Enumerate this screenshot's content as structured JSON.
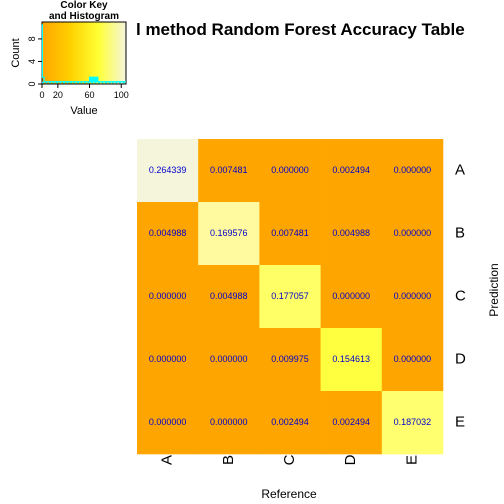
{
  "title": "l method Random Forest Accuracy Table",
  "color_key": {
    "title_line1": "Color Key",
    "title_line2": "and Histogram",
    "xlabel": "Value",
    "ylabel": "Count",
    "x_ticks": [
      "0",
      "20",
      "60",
      "100"
    ],
    "x_tick_values": [
      0,
      20,
      60,
      100
    ],
    "x_range": [
      0,
      106
    ],
    "y_ticks": [
      "0",
      "4",
      "8"
    ],
    "y_tick_values": [
      0,
      4,
      8
    ],
    "y_range": [
      0,
      11
    ],
    "gradient_colors": [
      "#ffa500",
      "#ffd000",
      "#ffff33",
      "#f5f5dc"
    ],
    "histogram_color": "#00ffff"
  },
  "chart_data": {
    "type": "heatmap",
    "title": "l method Random Forest Accuracy Table",
    "xlabel": "Reference",
    "ylabel": "Prediction",
    "columns": [
      "A",
      "B",
      "C",
      "D",
      "E"
    ],
    "rows": [
      "A",
      "B",
      "C",
      "D",
      "E"
    ],
    "values": [
      [
        "0.264339",
        "0.007481",
        "0.000000",
        "0.002494",
        "0.000000"
      ],
      [
        "0.004988",
        "0.169576",
        "0.007481",
        "0.004988",
        "0.000000"
      ],
      [
        "0.000000",
        "0.004988",
        "0.177057",
        "0.000000",
        "0.000000"
      ],
      [
        "0.000000",
        "0.000000",
        "0.009975",
        "0.154613",
        "0.000000"
      ],
      [
        "0.000000",
        "0.000000",
        "0.002494",
        "0.002494",
        "0.187032"
      ]
    ],
    "cell_colors": [
      [
        "#f5f5dc",
        "#ffa500",
        "#ffa500",
        "#ffa500",
        "#ffa500"
      ],
      [
        "#ffa500",
        "#fffaa0",
        "#ffa500",
        "#ffa500",
        "#ffa500"
      ],
      [
        "#ffa500",
        "#ffa500",
        "#ffff66",
        "#ffa500",
        "#ffa500"
      ],
      [
        "#ffa500",
        "#ffa500",
        "#ffa500",
        "#ffff40",
        "#ffa500"
      ],
      [
        "#ffa500",
        "#ffa500",
        "#ffa500",
        "#ffa500",
        "#ffff70"
      ]
    ],
    "text_color": "#0000cc"
  }
}
